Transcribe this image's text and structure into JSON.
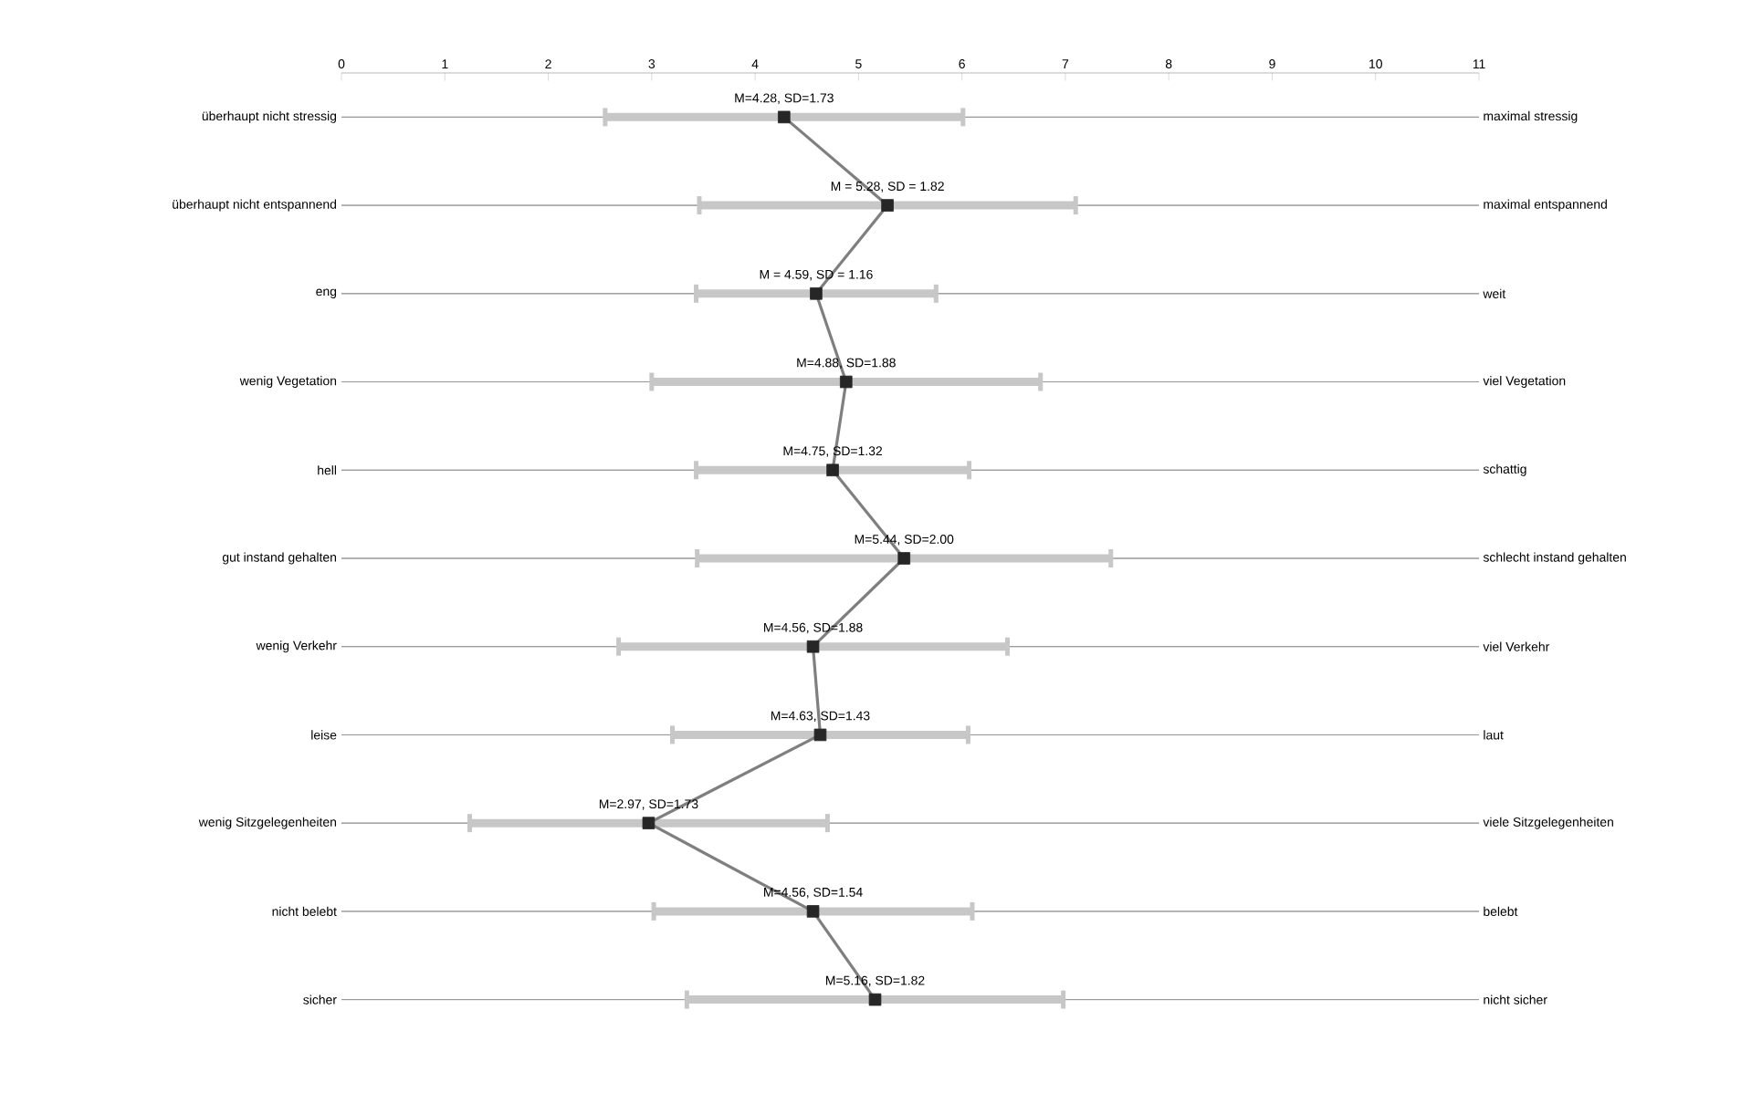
{
  "chart_data": {
    "type": "line",
    "orientation": "horizontal",
    "categories": [
      "überhaupt nicht stressig",
      "überhaupt nicht entspannend",
      "eng",
      "wenig Vegetation",
      "hell",
      "gut instand gehalten",
      "wenig Verkehr",
      "leise",
      "wenig Sitzgelegenheiten",
      "nicht belebt",
      "sicher"
    ],
    "y2_categories": [
      "maximal stressig",
      "maximal entspannend",
      "weit",
      "viel Vegetation",
      "schattig",
      "schlecht instand gehalten",
      "viel Verkehr",
      "laut",
      "viele Sitzgelegenheiten",
      "belebt",
      "nicht sicher"
    ],
    "values": [
      4.28,
      5.28,
      4.59,
      4.88,
      4.75,
      5.44,
      4.56,
      4.63,
      2.97,
      4.56,
      5.16
    ],
    "errors": [
      1.73,
      1.82,
      1.16,
      1.88,
      1.32,
      2.0,
      1.88,
      1.43,
      1.73,
      1.54,
      1.82
    ],
    "value_labels": [
      "M=4.28, SD=1.73",
      "M = 5.28, SD = 1.82",
      "M = 4.59, SD = 1.16",
      "M=4.88, SD=1.88",
      "M=4.75, SD=1.32",
      "M=5.44, SD=2.00",
      "M=4.56, SD=1.88",
      "M=4.63, SD=1.43",
      "M=2.97, SD=1.73",
      "M=4.56, SD=1.54",
      "M=5.16, SD=1.82"
    ],
    "color": "#7f7f7f",
    "marker": "square",
    "line_style": "solid",
    "grid": "y",
    "xlim": [
      0,
      11
    ],
    "xticks": [
      0,
      1,
      2,
      3,
      4,
      5,
      6,
      7,
      8,
      9,
      10,
      11
    ]
  }
}
